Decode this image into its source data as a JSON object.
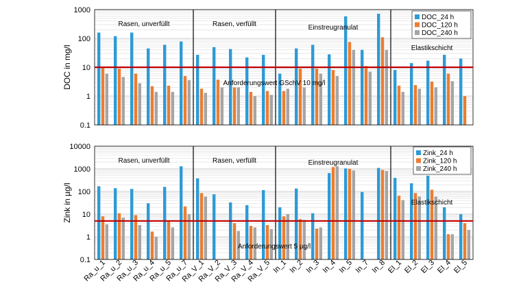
{
  "colors": {
    "series": [
      "#2e9bd6",
      "#ec7d31",
      "#a5a5a5"
    ],
    "threshold": "#c00000",
    "grid": "#d9d9d9"
  },
  "categories": [
    "Ra_u_1",
    "Ra_u_2",
    "Ra_u_3",
    "Ra_u_4",
    "Ra_u_5",
    "Ra_u_7",
    "Ra_V_1",
    "Ra_V_2",
    "Ra_V_3",
    "Ra_V_4",
    "Ra_V_5",
    "In_1",
    "In_2",
    "In_3",
    "In_4",
    "In_5",
    "In_7",
    "In_8",
    "El_1",
    "El_2",
    "El_3",
    "El_4",
    "El_5"
  ],
  "chart_data": [
    {
      "type": "bar",
      "yscale": "log",
      "ylabel": "DOC in mg/l",
      "ylim": [
        0.1,
        1000
      ],
      "yticks": [
        "0.1",
        "1",
        "10",
        "100",
        "1000"
      ],
      "series": [
        {
          "name": "DOC_24 h",
          "values": [
            160,
            120,
            160,
            45,
            60,
            78,
            27,
            50,
            43,
            22,
            27,
            6,
            45,
            60,
            28,
            580,
            40,
            720,
            8,
            14,
            17,
            27,
            20
          ]
        },
        {
          "name": "DOC_120 h",
          "values": [
            10,
            9,
            6,
            2.2,
            2.3,
            5,
            1.8,
            3.7,
            2,
            1.4,
            1.5,
            1.5,
            9,
            9,
            8,
            75,
            11,
            110,
            2.3,
            2.4,
            3.2,
            6,
            1
          ]
        },
        {
          "name": "DOC_240 h",
          "values": [
            6,
            4.6,
            2.8,
            1.4,
            1.4,
            3.6,
            1.3,
            2,
            2,
            1,
            1.1,
            1.8,
            2,
            6,
            5,
            40,
            7,
            40,
            1.4,
            1.8,
            2,
            3.3,
            null
          ]
        }
      ],
      "threshold": {
        "value": 10,
        "label": "Anforderungswert GSchV 10 mg/l"
      },
      "regions": [
        {
          "label": "Rasen, unverfüllt",
          "from": 0,
          "to": 5
        },
        {
          "label": "Rasen, verfüllt",
          "from": 6,
          "to": 10
        },
        {
          "label": "Einstreugranulat",
          "from": 11,
          "to": 17
        },
        {
          "label": "Elastikschicht",
          "from": 18,
          "to": 22
        }
      ]
    },
    {
      "type": "bar",
      "yscale": "log",
      "ylabel": "Zink in µg/l",
      "ylim": [
        0.1,
        10000
      ],
      "yticks": [
        "0.1",
        "1",
        "10",
        "100",
        "1000",
        "10000"
      ],
      "series": [
        {
          "name": "Zink_24 h",
          "values": [
            170,
            140,
            130,
            30,
            160,
            1300,
            380,
            75,
            33,
            25,
            115,
            20,
            135,
            11,
            650,
            1050,
            95,
            1100,
            400,
            230,
            500,
            20,
            10
          ]
        },
        {
          "name": "Zink_120 h",
          "values": [
            8,
            11,
            9,
            1.7,
            5,
            22,
            85,
            null,
            4,
            3,
            3.3,
            8,
            6,
            2.3,
            1200,
            1000,
            null,
            900,
            65,
            85,
            120,
            1.3,
            4
          ]
        },
        {
          "name": "Zink_240 h",
          "values": [
            3.6,
            7,
            3.3,
            1,
            2.6,
            10,
            60,
            null,
            1.8,
            2.6,
            2.2,
            10,
            5.5,
            2.6,
            1300,
            850,
            null,
            800,
            42,
            60,
            60,
            1.3,
            2
          ]
        }
      ],
      "threshold": {
        "value": 5,
        "label": "Anforderungswert 5 µg/l"
      },
      "regions": [
        {
          "label": "Rasen, unverfüllt",
          "from": 0,
          "to": 5
        },
        {
          "label": "Rasen, verfüllt",
          "from": 6,
          "to": 10
        },
        {
          "label": "Einstreugranulat",
          "from": 11,
          "to": 17
        },
        {
          "label": "Elastikschicht",
          "from": 18,
          "to": 22
        }
      ]
    }
  ]
}
